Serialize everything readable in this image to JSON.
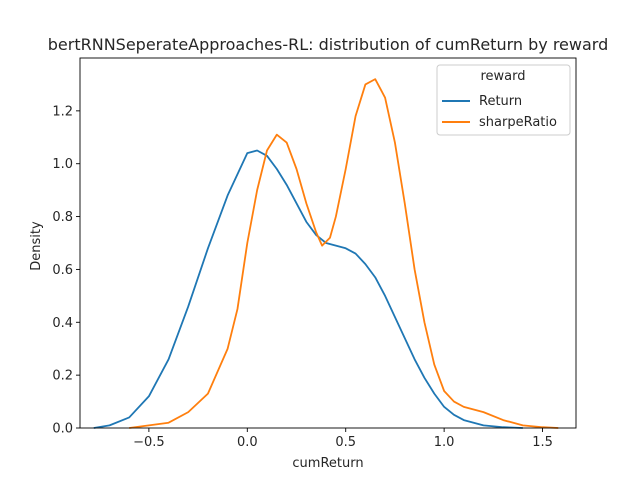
{
  "chart_data": {
    "type": "line",
    "title": "bertRNNSeperateApproaches-RL: distribution of cumReturn by reward",
    "xlabel": "cumReturn",
    "ylabel": "Density",
    "xlim": [
      -0.85,
      1.67
    ],
    "ylim": [
      0.0,
      1.4
    ],
    "xticks": [
      -0.5,
      0.0,
      0.5,
      1.0,
      1.5
    ],
    "xtick_labels": [
      "−0.5",
      "0.0",
      "0.5",
      "1.0",
      "1.5"
    ],
    "yticks": [
      0.0,
      0.2,
      0.4,
      0.6,
      0.8,
      1.0,
      1.2
    ],
    "ytick_labels": [
      "0.0",
      "0.2",
      "0.4",
      "0.6",
      "0.8",
      "1.0",
      "1.2"
    ],
    "grid": false,
    "legend": {
      "title": "reward",
      "position": "top-right"
    },
    "series": [
      {
        "name": "Return",
        "color": "#1f77b4",
        "points": [
          [
            -0.78,
            0.0
          ],
          [
            -0.7,
            0.01
          ],
          [
            -0.6,
            0.04
          ],
          [
            -0.5,
            0.12
          ],
          [
            -0.4,
            0.26
          ],
          [
            -0.3,
            0.46
          ],
          [
            -0.2,
            0.68
          ],
          [
            -0.1,
            0.88
          ],
          [
            0.0,
            1.04
          ],
          [
            0.05,
            1.05
          ],
          [
            0.1,
            1.03
          ],
          [
            0.15,
            0.98
          ],
          [
            0.2,
            0.92
          ],
          [
            0.25,
            0.85
          ],
          [
            0.3,
            0.78
          ],
          [
            0.35,
            0.73
          ],
          [
            0.4,
            0.7
          ],
          [
            0.45,
            0.69
          ],
          [
            0.5,
            0.68
          ],
          [
            0.55,
            0.66
          ],
          [
            0.6,
            0.62
          ],
          [
            0.65,
            0.57
          ],
          [
            0.7,
            0.5
          ],
          [
            0.75,
            0.42
          ],
          [
            0.8,
            0.34
          ],
          [
            0.85,
            0.26
          ],
          [
            0.9,
            0.19
          ],
          [
            0.95,
            0.13
          ],
          [
            1.0,
            0.08
          ],
          [
            1.05,
            0.05
          ],
          [
            1.1,
            0.03
          ],
          [
            1.2,
            0.01
          ],
          [
            1.3,
            0.003
          ],
          [
            1.4,
            0.0
          ]
        ]
      },
      {
        "name": "sharpeRatio",
        "color": "#ff7f0e",
        "points": [
          [
            -0.6,
            0.0
          ],
          [
            -0.5,
            0.01
          ],
          [
            -0.4,
            0.02
          ],
          [
            -0.3,
            0.06
          ],
          [
            -0.2,
            0.13
          ],
          [
            -0.1,
            0.3
          ],
          [
            -0.05,
            0.45
          ],
          [
            0.0,
            0.7
          ],
          [
            0.05,
            0.9
          ],
          [
            0.1,
            1.05
          ],
          [
            0.15,
            1.11
          ],
          [
            0.2,
            1.08
          ],
          [
            0.25,
            0.98
          ],
          [
            0.3,
            0.85
          ],
          [
            0.35,
            0.74
          ],
          [
            0.38,
            0.69
          ],
          [
            0.42,
            0.72
          ],
          [
            0.45,
            0.8
          ],
          [
            0.5,
            0.98
          ],
          [
            0.55,
            1.18
          ],
          [
            0.6,
            1.3
          ],
          [
            0.65,
            1.32
          ],
          [
            0.7,
            1.25
          ],
          [
            0.75,
            1.08
          ],
          [
            0.8,
            0.85
          ],
          [
            0.85,
            0.6
          ],
          [
            0.9,
            0.4
          ],
          [
            0.95,
            0.24
          ],
          [
            1.0,
            0.14
          ],
          [
            1.05,
            0.1
          ],
          [
            1.1,
            0.08
          ],
          [
            1.2,
            0.06
          ],
          [
            1.3,
            0.03
          ],
          [
            1.4,
            0.01
          ],
          [
            1.5,
            0.003
          ],
          [
            1.58,
            0.0
          ]
        ]
      }
    ]
  }
}
